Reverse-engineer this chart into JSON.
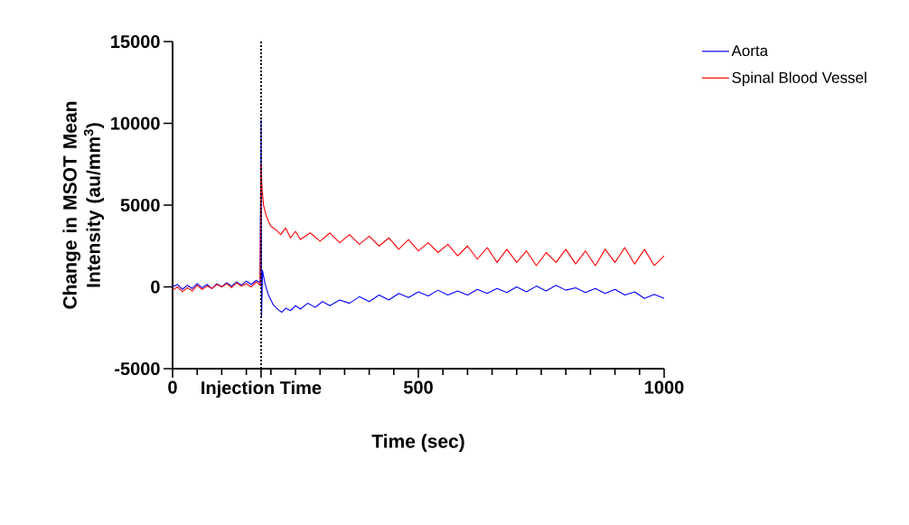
{
  "chart_data": {
    "type": "line",
    "xlabel": "Time (sec)",
    "ylabel": "Change in MSOT Mean Intensity (au/mm$^{3}$)",
    "xlim": [
      0,
      1000
    ],
    "ylim": [
      -5000,
      15000
    ],
    "xticks": [
      0,
      {
        "value": 50,
        "label": null
      },
      {
        "value": 100,
        "label": null
      },
      {
        "value": 150,
        "label": null
      },
      {
        "value": 180,
        "label": "Injection Time"
      },
      {
        "value": 200,
        "label": null
      },
      {
        "value": 250,
        "label": null
      },
      {
        "value": 300,
        "label": null
      },
      {
        "value": 350,
        "label": null
      },
      {
        "value": 400,
        "label": null
      },
      {
        "value": 450,
        "label": null
      },
      500,
      {
        "value": 550,
        "label": null
      },
      {
        "value": 600,
        "label": null
      },
      {
        "value": 650,
        "label": null
      },
      {
        "value": 700,
        "label": null
      },
      {
        "value": 750,
        "label": null
      },
      {
        "value": 800,
        "label": null
      },
      {
        "value": 850,
        "label": null
      },
      {
        "value": 900,
        "label": null
      },
      {
        "value": 950,
        "label": null
      },
      1000
    ],
    "yticks": [
      -5000,
      0,
      5000,
      10000,
      15000
    ],
    "legend": "top right",
    "grid": false,
    "ref_lines": [
      {
        "axis": "x",
        "value": 180,
        "color": "#000000",
        "line_style": "dotted"
      }
    ],
    "series": [
      {
        "name": "Aorta",
        "color": "#0000ff",
        "x": [
          0,
          10,
          20,
          30,
          40,
          50,
          60,
          70,
          80,
          90,
          100,
          110,
          120,
          130,
          140,
          150,
          160,
          170,
          178,
          180,
          181,
          183,
          188,
          195,
          205,
          215,
          222,
          230,
          240,
          250,
          260,
          275,
          290,
          305,
          320,
          340,
          360,
          380,
          400,
          420,
          440,
          460,
          480,
          500,
          520,
          540,
          560,
          580,
          600,
          620,
          640,
          660,
          680,
          700,
          720,
          740,
          760,
          780,
          800,
          820,
          840,
          860,
          880,
          900,
          920,
          940,
          960,
          980,
          1000
        ],
        "values": [
          0,
          150,
          -150,
          100,
          -100,
          200,
          -50,
          150,
          -100,
          200,
          0,
          250,
          50,
          300,
          100,
          350,
          150,
          400,
          250,
          10200,
          -1800,
          1000,
          200,
          -500,
          -1100,
          -1400,
          -1550,
          -1300,
          -1450,
          -1150,
          -1350,
          -1000,
          -1250,
          -900,
          -1150,
          -800,
          -1000,
          -600,
          -900,
          -500,
          -800,
          -400,
          -650,
          -300,
          -550,
          -200,
          -500,
          -250,
          -500,
          -150,
          -400,
          -100,
          -350,
          0,
          -300,
          50,
          -250,
          100,
          -200,
          -50,
          -350,
          -100,
          -400,
          -150,
          -500,
          -300,
          -700,
          -450,
          -700
        ]
      },
      {
        "name": "Spinal Blood Vessel",
        "color": "#ff0000",
        "x": [
          0,
          10,
          20,
          30,
          40,
          50,
          60,
          70,
          80,
          90,
          100,
          110,
          120,
          130,
          140,
          150,
          160,
          170,
          178,
          180,
          182,
          185,
          190,
          195,
          200,
          210,
          220,
          230,
          240,
          250,
          260,
          280,
          300,
          320,
          340,
          360,
          380,
          400,
          420,
          440,
          460,
          480,
          500,
          520,
          540,
          560,
          580,
          600,
          620,
          640,
          660,
          680,
          700,
          720,
          740,
          760,
          780,
          800,
          820,
          840,
          860,
          880,
          900,
          920,
          940,
          960,
          980,
          1000
        ],
        "values": [
          -200,
          0,
          -300,
          -50,
          -250,
          100,
          -150,
          50,
          -100,
          150,
          0,
          200,
          -50,
          250,
          50,
          200,
          0,
          300,
          100,
          7500,
          6000,
          5000,
          4400,
          4000,
          3700,
          3500,
          3200,
          3600,
          3000,
          3400,
          2900,
          3300,
          2800,
          3300,
          2700,
          3200,
          2600,
          3100,
          2500,
          3000,
          2300,
          2900,
          2200,
          2700,
          2100,
          2600,
          1900,
          2500,
          1700,
          2400,
          1500,
          2300,
          1500,
          2200,
          1300,
          2100,
          1500,
          2300,
          1400,
          2200,
          1300,
          2300,
          1500,
          2400,
          1400,
          2300,
          1300,
          1900
        ]
      }
    ]
  }
}
